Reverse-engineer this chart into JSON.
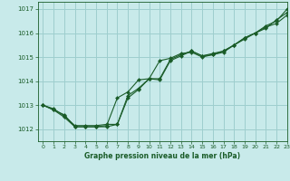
{
  "title": "Graphe pression niveau de la mer (hPa)",
  "bg_color": "#c8eaea",
  "grid_color": "#9ecece",
  "line_color": "#1a5c28",
  "xlim": [
    -0.5,
    23
  ],
  "ylim": [
    1011.5,
    1017.3
  ],
  "yticks": [
    1012,
    1013,
    1014,
    1015,
    1016,
    1017
  ],
  "xticks": [
    0,
    1,
    2,
    3,
    4,
    5,
    6,
    7,
    8,
    9,
    10,
    11,
    12,
    13,
    14,
    15,
    16,
    17,
    18,
    19,
    20,
    21,
    22,
    23
  ],
  "series": [
    {
      "x": [
        0,
        1,
        2,
        3,
        4,
        5,
        6,
        7,
        8,
        9,
        10,
        11,
        12,
        13,
        14,
        15,
        16,
        17,
        18,
        19,
        20,
        21,
        22,
        23
      ],
      "y": [
        1013.0,
        1012.8,
        1012.6,
        1012.1,
        1012.1,
        1012.1,
        1012.1,
        1012.2,
        1013.4,
        1013.7,
        1014.1,
        1014.1,
        1014.9,
        1015.1,
        1015.25,
        1015.05,
        1015.1,
        1015.2,
        1015.5,
        1015.8,
        1016.0,
        1016.3,
        1016.5,
        1017.0
      ]
    },
    {
      "x": [
        0,
        1,
        2,
        3,
        4,
        5,
        6,
        7,
        8,
        9,
        10,
        11,
        12,
        13,
        14,
        15,
        16,
        17,
        18,
        19,
        20,
        21,
        22,
        23
      ],
      "y": [
        1013.0,
        1012.8,
        1012.5,
        1012.1,
        1012.1,
        1012.1,
        1012.15,
        1013.3,
        1013.55,
        1014.05,
        1014.1,
        1014.85,
        1014.95,
        1015.15,
        1015.2,
        1015.0,
        1015.1,
        1015.25,
        1015.5,
        1015.8,
        1016.0,
        1016.2,
        1016.55,
        1016.85
      ]
    },
    {
      "x": [
        0,
        1,
        2,
        3,
        4,
        5,
        6,
        7,
        8,
        9,
        10,
        11,
        12,
        13,
        14,
        15,
        16,
        17,
        18,
        19,
        20,
        21,
        22,
        23
      ],
      "y": [
        1013.0,
        1012.85,
        1012.55,
        1012.15,
        1012.15,
        1012.15,
        1012.2,
        1012.2,
        1013.3,
        1013.65,
        1014.1,
        1014.05,
        1014.85,
        1015.05,
        1015.25,
        1015.05,
        1015.15,
        1015.25,
        1015.5,
        1015.75,
        1016.0,
        1016.25,
        1016.4,
        1016.75
      ]
    }
  ]
}
